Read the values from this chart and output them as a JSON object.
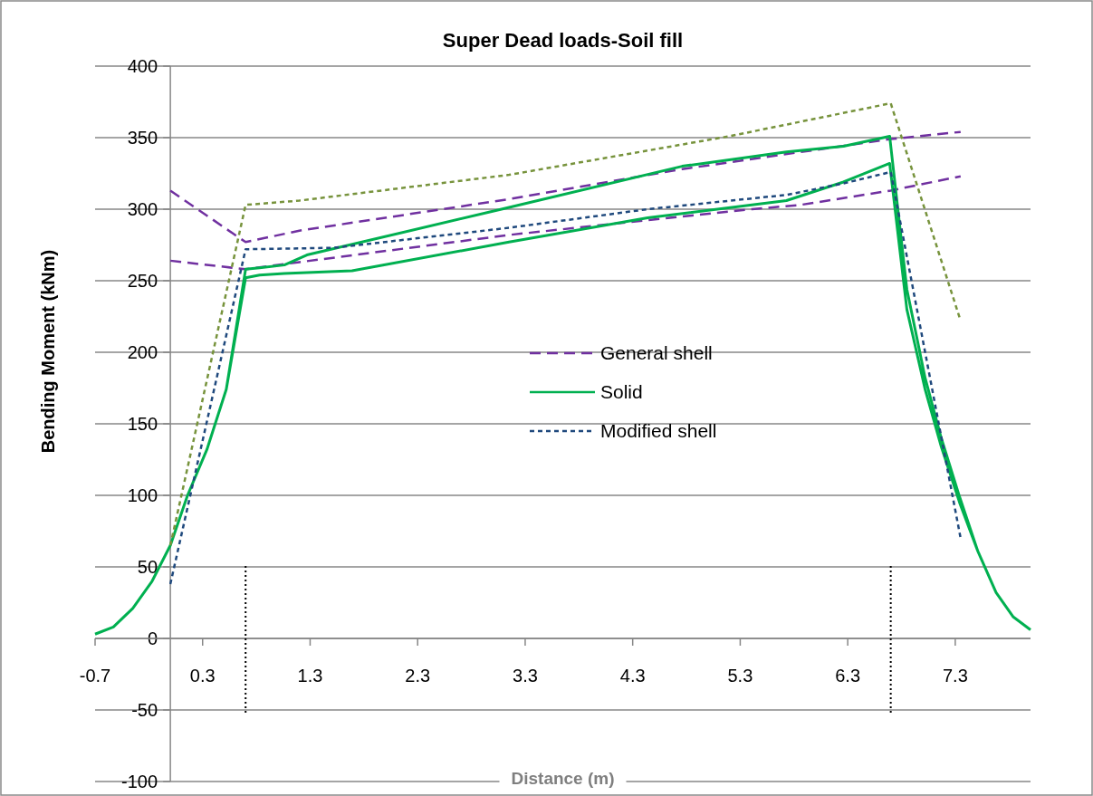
{
  "chart_data": {
    "type": "line",
    "title": "Super Dead loads-Soil fill",
    "xlabel": "Distance (m)",
    "ylabel": "Bending Moment (kNm)",
    "xlim": [
      -0.7,
      8.0
    ],
    "xticks": [
      -0.7,
      0.3,
      1.3,
      2.3,
      3.3,
      4.3,
      5.3,
      6.3,
      7.3
    ],
    "ylim": [
      -100,
      400
    ],
    "yticks": [
      -100,
      -50,
      0,
      50,
      100,
      150,
      200,
      250,
      300,
      350,
      400
    ],
    "grid": "y",
    "legend": "center",
    "marker": "none",
    "series": [
      {
        "name": "General shell",
        "color": "#7030a0",
        "line_style": "dashed",
        "x": [
          0,
          0.7,
          1.2,
          3.15,
          4.76,
          6.7,
          7.35,
          null,
          0,
          0.7,
          1.2,
          3.15,
          5.41,
          5.86,
          6.7,
          7.35
        ],
        "values": [
          313,
          277,
          285,
          307,
          328,
          349,
          354,
          null,
          264,
          258,
          263,
          282,
          300,
          303,
          313,
          323
        ]
      },
      {
        "name": "Solid",
        "color": "#00b050",
        "line_style": "solid",
        "x": [
          -0.7,
          -0.53,
          -0.35,
          -0.17,
          0,
          0.16,
          0.34,
          0.52,
          0.7,
          0.83,
          1.06,
          1.27,
          3.08,
          4.76,
          5.73,
          6.26,
          6.69,
          6.85,
          7.02,
          7.17,
          7.34,
          7.51,
          7.68,
          7.84,
          8.0,
          null,
          0.52,
          0.7,
          0.83,
          1.06,
          1.69,
          3.15,
          4.44,
          5.73,
          6.26,
          6.69,
          6.85,
          7.02,
          7.17,
          7.34,
          7.51
        ],
        "values": [
          3,
          8,
          21,
          40,
          65,
          100,
          132,
          174,
          258,
          259,
          261,
          268,
          300,
          330,
          340,
          344,
          351,
          244,
          182,
          140,
          99,
          61,
          32,
          15,
          6,
          null,
          174,
          252,
          254,
          255,
          257,
          277,
          294,
          306,
          319,
          332,
          230,
          174,
          134,
          95,
          61
        ]
      },
      {
        "name": "Modified shell",
        "color": "#1f497d",
        "line_style": "dotted",
        "x": [
          0,
          0.7,
          1.52,
          3.15,
          4.44,
          5.73,
          6.26,
          6.7,
          7.35
        ],
        "values": [
          38,
          272,
          273,
          287,
          300,
          310,
          318,
          326,
          70
        ]
      },
      {
        "color": "#77933c",
        "line_style": "dotted",
        "x": [
          0,
          0.7,
          1.2,
          3.15,
          5.2,
          6.7,
          7.35
        ],
        "values": [
          65,
          303,
          306,
          324,
          351,
          374,
          222
        ]
      }
    ],
    "ref_lines": [
      {
        "axis": "x",
        "value": 0.7,
        "color": "#000000",
        "line_style": "dotted"
      },
      {
        "axis": "x",
        "value": 6.7,
        "color": "#000000",
        "line_style": "dotted"
      }
    ]
  }
}
